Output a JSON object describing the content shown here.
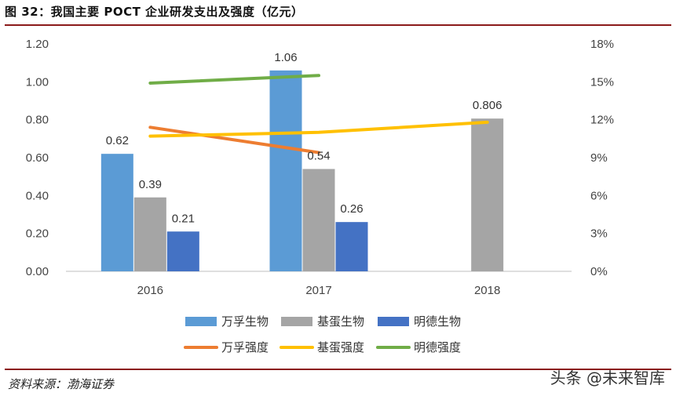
{
  "figure_title": "图 32：我国主要 POCT 企业研发支出及强度（亿元）",
  "source": "资料来源：渤海证券",
  "watermark": "头条 @未来智库",
  "chart_data": {
    "type": "bar",
    "title": "图 32：我国主要 POCT 企业研发支出及强度（亿元）",
    "categories": [
      "2016",
      "2017",
      "2018"
    ],
    "ylim": [
      0,
      1.2
    ],
    "y_ticks": [
      "0.00",
      "0.20",
      "0.40",
      "0.60",
      "0.80",
      "1.00",
      "1.20"
    ],
    "y2lim": [
      0,
      18
    ],
    "y2_ticks": [
      "0%",
      "3%",
      "6%",
      "9%",
      "12%",
      "15%",
      "18%"
    ],
    "grid": false,
    "legend_position": "bottom",
    "series": [
      {
        "name": "万孚生物",
        "kind": "bar",
        "color": "#5b9bd5",
        "values": [
          0.62,
          1.06,
          null
        ],
        "labels": [
          "0.62",
          "1.06",
          ""
        ]
      },
      {
        "name": "基蛋生物",
        "kind": "bar",
        "color": "#a5a5a5",
        "values": [
          0.39,
          0.54,
          0.806
        ],
        "labels": [
          "0.39",
          "0.54",
          "0.806"
        ]
      },
      {
        "name": "明德生物",
        "kind": "bar",
        "color": "#4472c4",
        "values": [
          0.21,
          0.26,
          null
        ],
        "labels": [
          "0.21",
          "0.26",
          ""
        ]
      },
      {
        "name": "万孚强度",
        "kind": "line",
        "axis": "right",
        "color": "#ed7d31",
        "values": [
          11.4,
          9.4,
          null
        ]
      },
      {
        "name": "基蛋强度",
        "kind": "line",
        "axis": "right",
        "color": "#ffc000",
        "values": [
          10.7,
          11.0,
          11.8
        ]
      },
      {
        "name": "明德强度",
        "kind": "line",
        "axis": "right",
        "color": "#70ad47",
        "values": [
          14.9,
          15.5,
          null
        ]
      }
    ]
  }
}
